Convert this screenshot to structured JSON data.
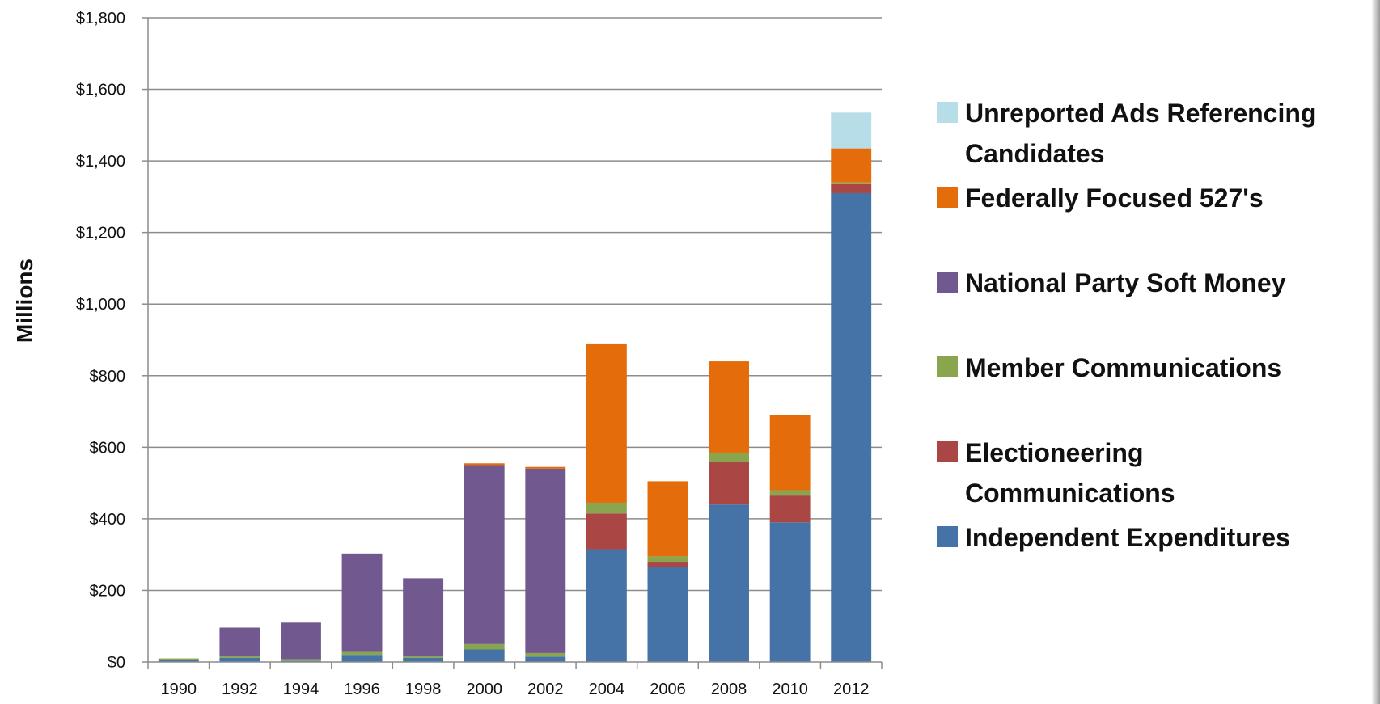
{
  "chart_data": {
    "type": "bar",
    "stacked": true,
    "categories": [
      "1990",
      "1992",
      "1994",
      "1996",
      "1998",
      "2000",
      "2002",
      "2004",
      "2006",
      "2008",
      "2010",
      "2012"
    ],
    "ylabel": "Millions",
    "ylim": [
      0,
      1800
    ],
    "yticks": [
      0,
      200,
      400,
      600,
      800,
      1000,
      1200,
      1400,
      1600,
      1800
    ],
    "ytick_labels": [
      "$0",
      "$200",
      "$400",
      "$600",
      "$800",
      "$1,000",
      "$1,200",
      "$1,400",
      "$1,600",
      "$1,800"
    ],
    "grid": true,
    "legend_position": "right",
    "series": [
      {
        "name": "Independent Expenditures",
        "color": "#4572A7",
        "values": [
          5,
          12,
          3,
          20,
          12,
          35,
          15,
          315,
          265,
          440,
          390,
          1310
        ]
      },
      {
        "name": "Electioneering Communications",
        "color": "#AA4643",
        "values": [
          0,
          0,
          0,
          0,
          0,
          0,
          0,
          100,
          15,
          120,
          75,
          25
        ]
      },
      {
        "name": "Member Communications",
        "color": "#89A54E",
        "values": [
          5,
          6,
          5,
          8,
          6,
          15,
          10,
          30,
          15,
          25,
          15,
          5
        ]
      },
      {
        "name": "National Party Soft Money",
        "color": "#71588F",
        "values": [
          0,
          78,
          102,
          275,
          216,
          500,
          515,
          0,
          0,
          0,
          0,
          0
        ]
      },
      {
        "name": "Federally Focused 527's",
        "color": "#E46C0A",
        "values": [
          0,
          0,
          0,
          0,
          0,
          5,
          5,
          445,
          210,
          255,
          210,
          95
        ]
      },
      {
        "name": "Unreported Ads Referencing Candidates",
        "color": "#B7DDE8",
        "values": [
          0,
          0,
          0,
          0,
          0,
          0,
          0,
          0,
          0,
          0,
          0,
          100
        ]
      }
    ],
    "legend_lines": [
      [
        "Unreported Ads Referencing",
        "Candidates"
      ],
      [
        "Federally Focused 527's"
      ],
      [
        "National Party Soft Money"
      ],
      [
        "Member Communications"
      ],
      [
        "Electioneering",
        "Communications"
      ],
      [
        "Independent Expenditures"
      ]
    ]
  }
}
